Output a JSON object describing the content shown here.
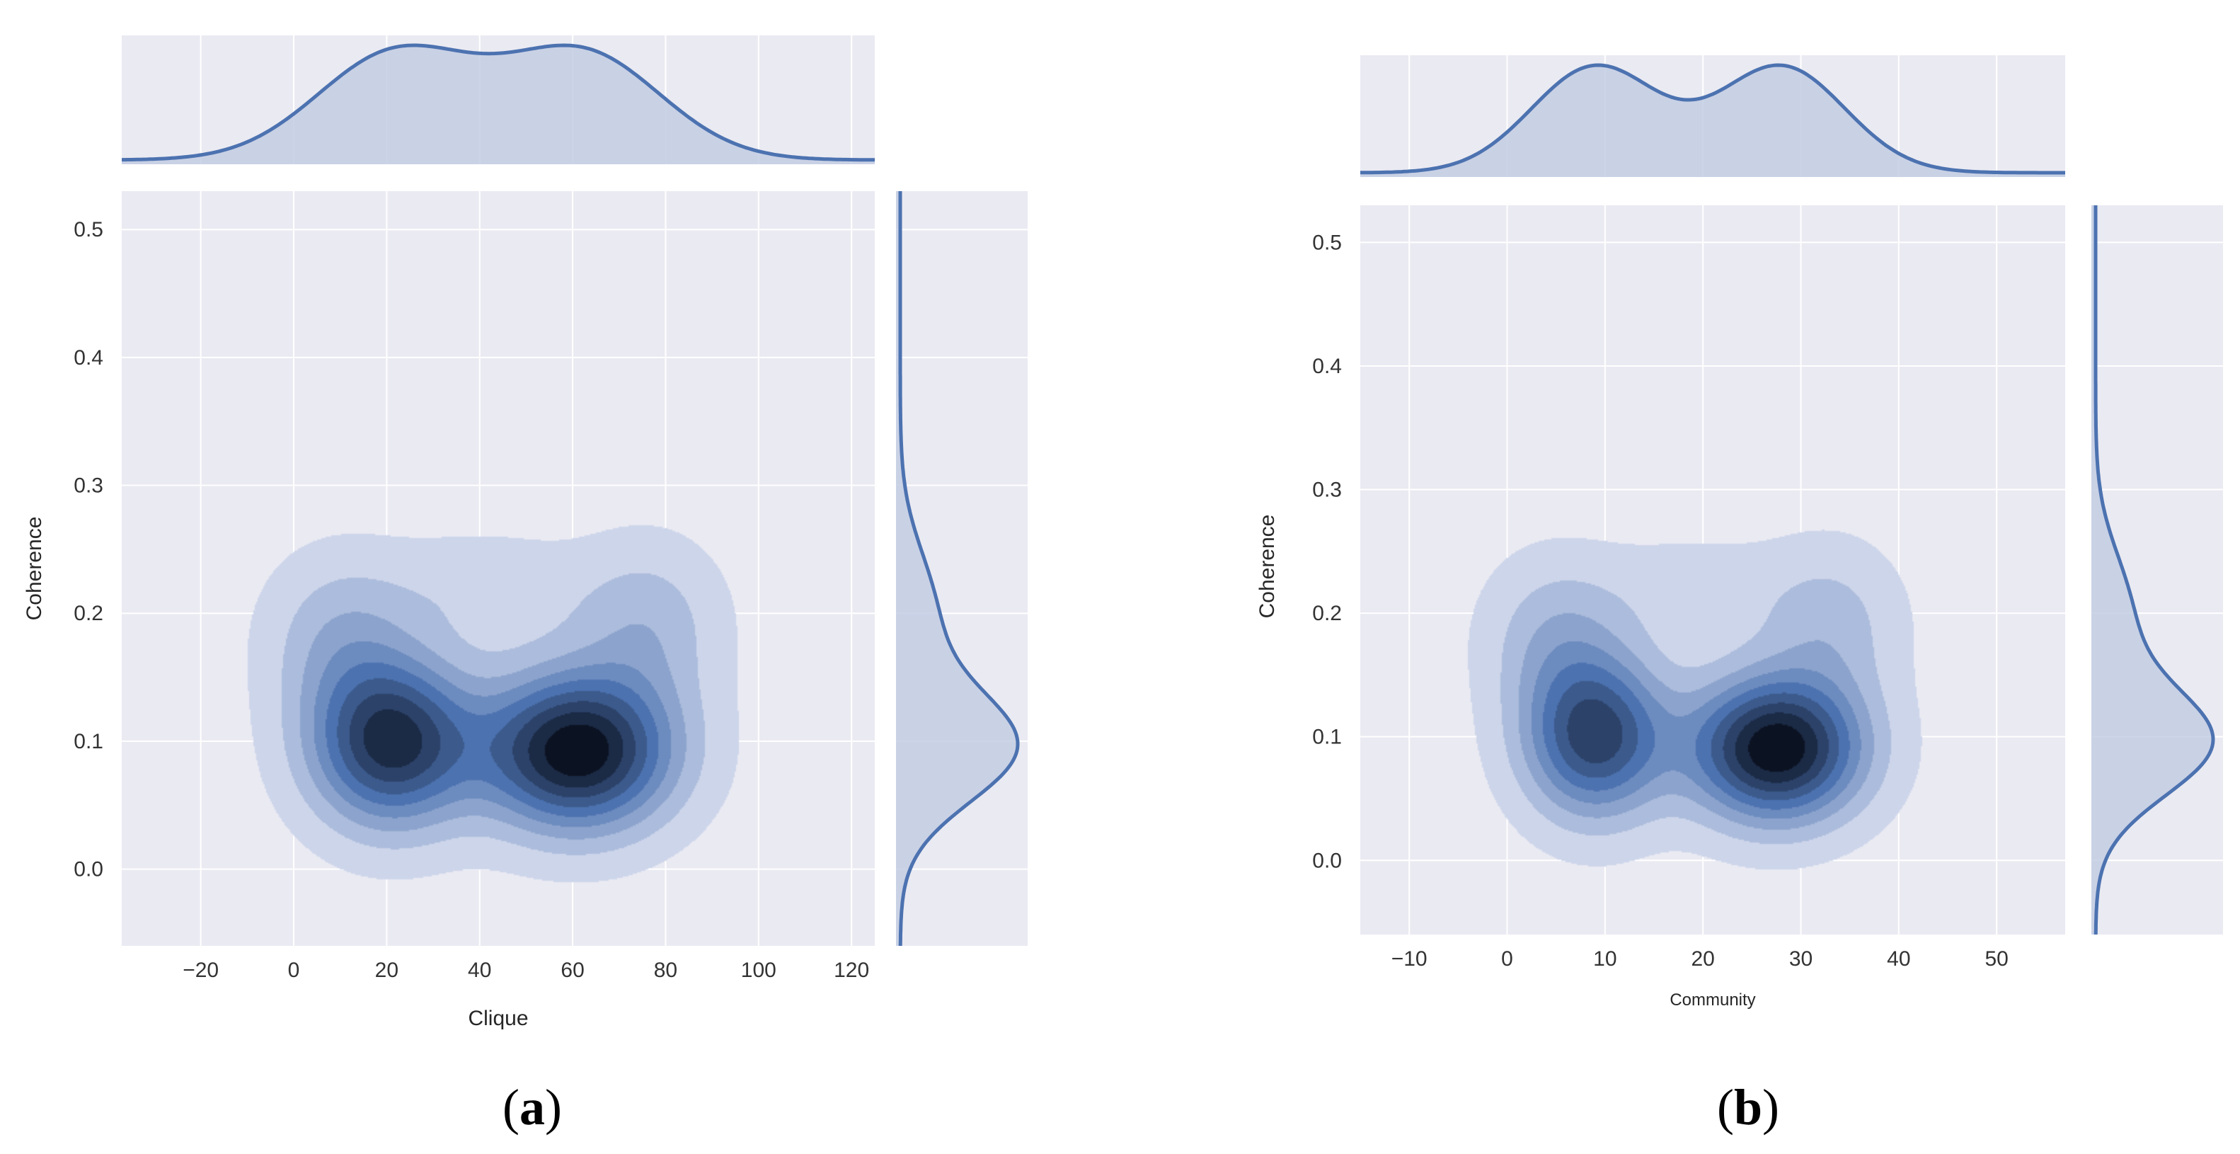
{
  "chart_data": [
    {
      "type": "kde-joint",
      "panel_label_paren_open": "(",
      "panel_label_letter": "a",
      "panel_label_paren_close": ")",
      "xlabel": "Clique",
      "ylabel": "Coherence",
      "xlim": [
        -37,
        125
      ],
      "ylim": [
        -0.06,
        0.53
      ],
      "xticks": [
        -20,
        0,
        20,
        40,
        60,
        80,
        100,
        120
      ],
      "xtick_labels": [
        "−20",
        "0",
        "20",
        "40",
        "60",
        "80",
        "100",
        "120"
      ],
      "yticks": [
        0.0,
        0.1,
        0.2,
        0.3,
        0.4,
        0.5
      ],
      "ytick_labels": [
        "0.0",
        "0.1",
        "0.2",
        "0.3",
        "0.4",
        "0.5"
      ],
      "grid": true,
      "levels": 9,
      "density_modes": [
        {
          "x": 21,
          "y": 0.099,
          "sx": 12,
          "sy": 0.045,
          "weight": 0.85
        },
        {
          "x": 61,
          "y": 0.092,
          "sx": 14,
          "sy": 0.042,
          "weight": 1.0
        },
        {
          "x": 10,
          "y": 0.18,
          "sx": 11,
          "sy": 0.045,
          "weight": 0.22
        },
        {
          "x": 76,
          "y": 0.19,
          "sx": 11,
          "sy": 0.045,
          "weight": 0.22
        },
        {
          "x": 41,
          "y": 0.22,
          "sx": 16,
          "sy": 0.03,
          "weight": 0.12
        }
      ],
      "top_marginal": [
        {
          "mu": 22,
          "sigma": 17,
          "weight": 1.0
        },
        {
          "mu": 62,
          "sigma": 17,
          "weight": 1.0
        }
      ],
      "right_marginal": [
        {
          "mu": 0.095,
          "sigma": 0.043,
          "weight": 1.0
        },
        {
          "mu": 0.2,
          "sigma": 0.05,
          "weight": 0.3
        }
      ]
    },
    {
      "type": "kde-joint",
      "panel_label_paren_open": "(",
      "panel_label_letter": "b",
      "panel_label_paren_close": ")",
      "xlabel": "Community",
      "ylabel": "Coherence",
      "xlim": [
        -15,
        57
      ],
      "ylim": [
        -0.06,
        0.53
      ],
      "xticks": [
        -10,
        0,
        10,
        20,
        30,
        40,
        50
      ],
      "xtick_labels": [
        "−10",
        "0",
        "10",
        "20",
        "30",
        "40",
        "50"
      ],
      "yticks": [
        0.0,
        0.1,
        0.2,
        0.3,
        0.4,
        0.5
      ],
      "ytick_labels": [
        "0.0",
        "0.1",
        "0.2",
        "0.3",
        "0.4",
        "0.5"
      ],
      "grid": true,
      "levels": 9,
      "density_modes": [
        {
          "x": 9,
          "y": 0.1,
          "sx": 5,
          "sy": 0.045,
          "weight": 0.75
        },
        {
          "x": 27.5,
          "y": 0.09,
          "sx": 6,
          "sy": 0.04,
          "weight": 1.0
        },
        {
          "x": 5,
          "y": 0.18,
          "sx": 5,
          "sy": 0.045,
          "weight": 0.22
        },
        {
          "x": 33,
          "y": 0.19,
          "sx": 5,
          "sy": 0.045,
          "weight": 0.2
        },
        {
          "x": 19,
          "y": 0.22,
          "sx": 7,
          "sy": 0.03,
          "weight": 0.1
        }
      ],
      "top_marginal": [
        {
          "mu": 9,
          "sigma": 6.5,
          "weight": 1.0
        },
        {
          "mu": 28,
          "sigma": 6.5,
          "weight": 1.0
        }
      ],
      "right_marginal": [
        {
          "mu": 0.095,
          "sigma": 0.043,
          "weight": 1.0
        },
        {
          "mu": 0.2,
          "sigma": 0.05,
          "weight": 0.3
        }
      ]
    }
  ],
  "colors": {
    "axes_bg": "#eaeaf2",
    "grid": "#ffffff",
    "line": "#4c72b0",
    "fill": "#c3cce3",
    "contour_light": "#ccd5ea",
    "contour_mid": "#4c72b0",
    "contour_dark": "#0b1221"
  }
}
